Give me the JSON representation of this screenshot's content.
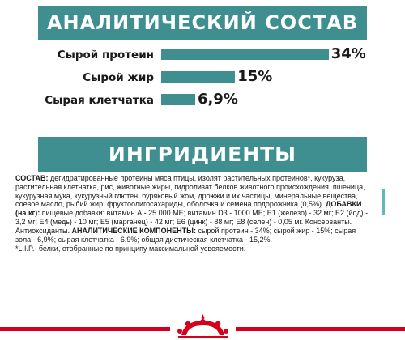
{
  "analysis": {
    "title": "АНАЛИТИЧЕСКИЙ СОСТАВ",
    "items": [
      {
        "label": "Сырой протеин",
        "value_text": "34%",
        "value": 34
      },
      {
        "label": "Сырой жир",
        "value_text": "15%",
        "value": 15
      },
      {
        "label": "Сырая клетчатка",
        "value_text": "6,9%",
        "value": 6.9
      }
    ]
  },
  "ingredients": {
    "title": "ИНГРИДИЕНТЫ",
    "composition_label": "СОСТАВ:",
    "composition_text": " дегидратированные протеины мяса птицы, изолят растительных протеинов*, кукуруза, растительная клетчатка, рис, животные жиры, гидролизат белков животного происхождения, пшеница, кукурузная мука, кукурузный глютен, буряковый жом, дрожжи и их частицы, минеральные вещества, соевое масло, рыбий жир, фруктоолигосахариды, оболочка и семена подорожника (0,5%).",
    "additives_label": "ДОБАВКИ (на кг):",
    "additives_text": " пищевые добавки: витамин А - 25 000 МЕ; витамин D3 - 1000 МЕ; Е1 (железо) - 32 мг; Е2 (йод) - 3,2 мг; Е4 (медь) - 10 мг; Е5 (марганец) - 42 мг; Е6 (цинк) - 88 мг; Е8 (селен) - 0,05 мг. Консерванты. Антиоксиданты.",
    "analytic_label": "АНАЛИТИЧЕСКИЕ КОМПОНЕНТЫ:",
    "analytic_text": " сырой протеин - 34%; сырой жир - 15%; сырая зола - 6,9%; сырая клетчатка - 6,9%; общая диетическая клетчатка - 15,2%.",
    "footnote": "*L.I.P.- белки, отобранные по принципу максимальной усвояемости."
  },
  "colors": {
    "accent": "#3f8f90",
    "brand_red": "#d6001c"
  },
  "footer": {
    "logo_icon": "royal-canin-crown-logo"
  }
}
